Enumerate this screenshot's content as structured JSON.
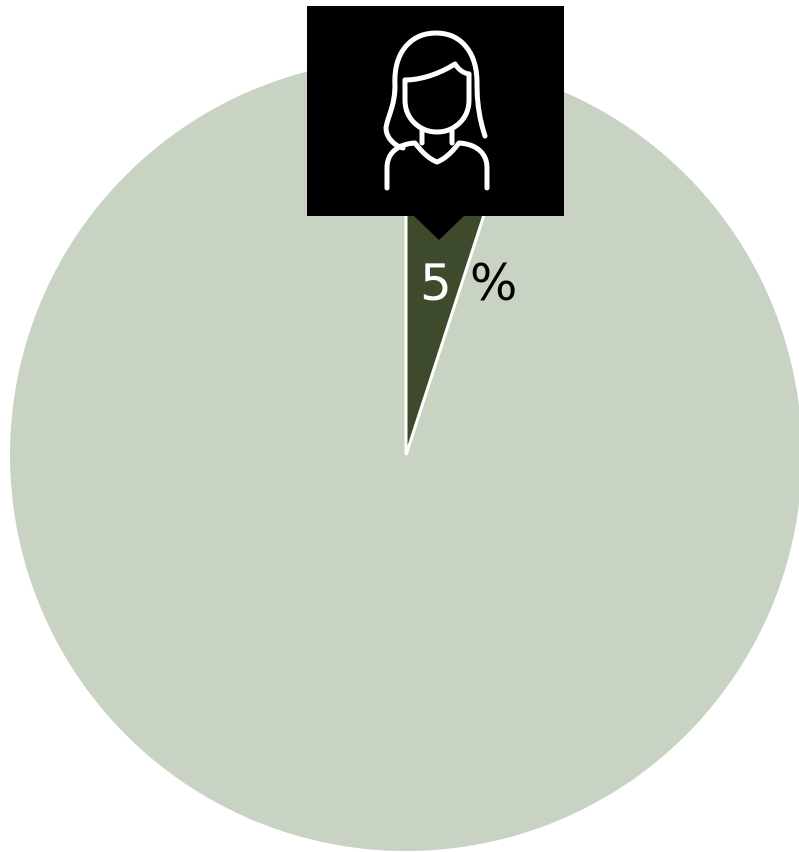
{
  "chart_data": {
    "type": "pie",
    "slices": [
      {
        "value": 5,
        "label": "5%",
        "color": "#3e4a2c"
      },
      {
        "value": 95,
        "label": "",
        "color": "#c8d3c4"
      }
    ],
    "start_angle_deg": 0,
    "direction": "clockwise",
    "slice_separator_color": "#ffffff",
    "highlight": {
      "slice_index": 0,
      "icon": "woman-icon",
      "callout_color": "#000000",
      "icon_color": "#ffffff"
    }
  }
}
